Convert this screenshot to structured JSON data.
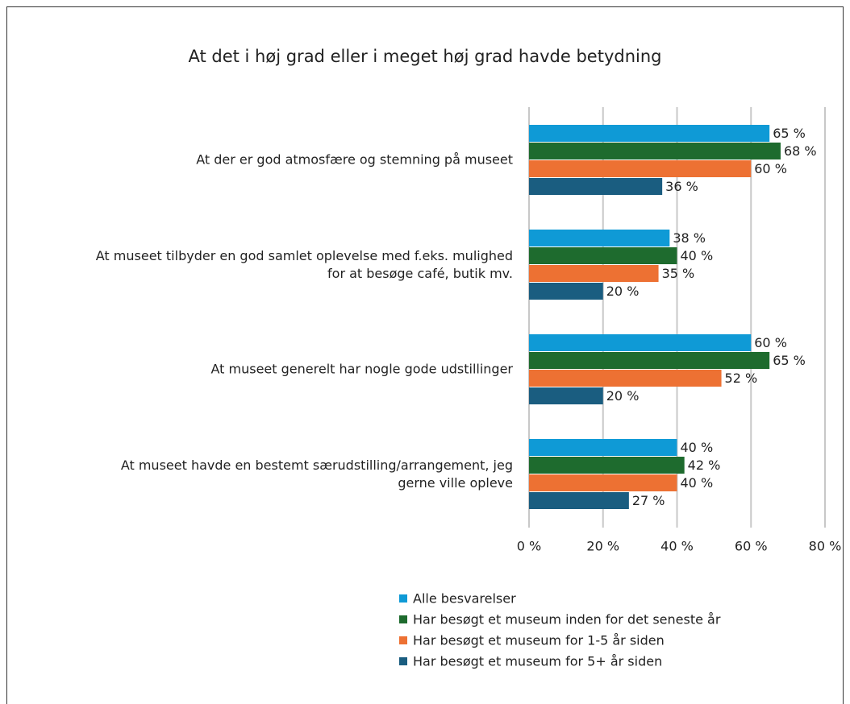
{
  "chart_data": {
    "type": "bar",
    "orientation": "horizontal",
    "title": "At det i høj grad eller i meget høj grad havde betydning",
    "categories": [
      "At der er god atmosfære og stemning på museet",
      "At museet tilbyder en god samlet oplevelse med f.eks. mulighed\nfor at besøge café, butik mv.",
      "At museet generelt har nogle gode udstillinger",
      "At museet havde en bestemt særudstilling/arrangement, jeg\ngerne ville opleve"
    ],
    "series": [
      {
        "name": "Alle besvarelser",
        "color": "#0f9ad6",
        "values": [
          65,
          38,
          60,
          40
        ],
        "value_labels": [
          "65 %",
          "38 %",
          "60 %",
          "40 %"
        ]
      },
      {
        "name": "Har besøgt et museum inden for det seneste år",
        "color": "#1e6b2e",
        "values": [
          68,
          40,
          65,
          42
        ],
        "value_labels": [
          "68 %",
          "40 %",
          "65 %",
          "42 %"
        ]
      },
      {
        "name": "Har besøgt et museum for 1-5 år siden",
        "color": "#ed7133",
        "values": [
          60,
          35,
          52,
          40
        ],
        "value_labels": [
          "60 %",
          "35 %",
          "52 %",
          "40 %"
        ]
      },
      {
        "name": "Har besøgt et museum for 5+ år siden",
        "color": "#1a5d80",
        "values": [
          36,
          20,
          20,
          27
        ],
        "value_labels": [
          "36 %",
          "20 %",
          "20 %",
          "27 %"
        ]
      }
    ],
    "xlim": [
      0,
      80
    ],
    "xticks": [
      {
        "value": 0,
        "label": "0 %"
      },
      {
        "value": 20,
        "label": "20 %"
      },
      {
        "value": 40,
        "label": "40 %"
      },
      {
        "value": 60,
        "label": "60 %"
      },
      {
        "value": 80,
        "label": "80 %"
      }
    ],
    "grid": true,
    "legend": "bottom"
  }
}
